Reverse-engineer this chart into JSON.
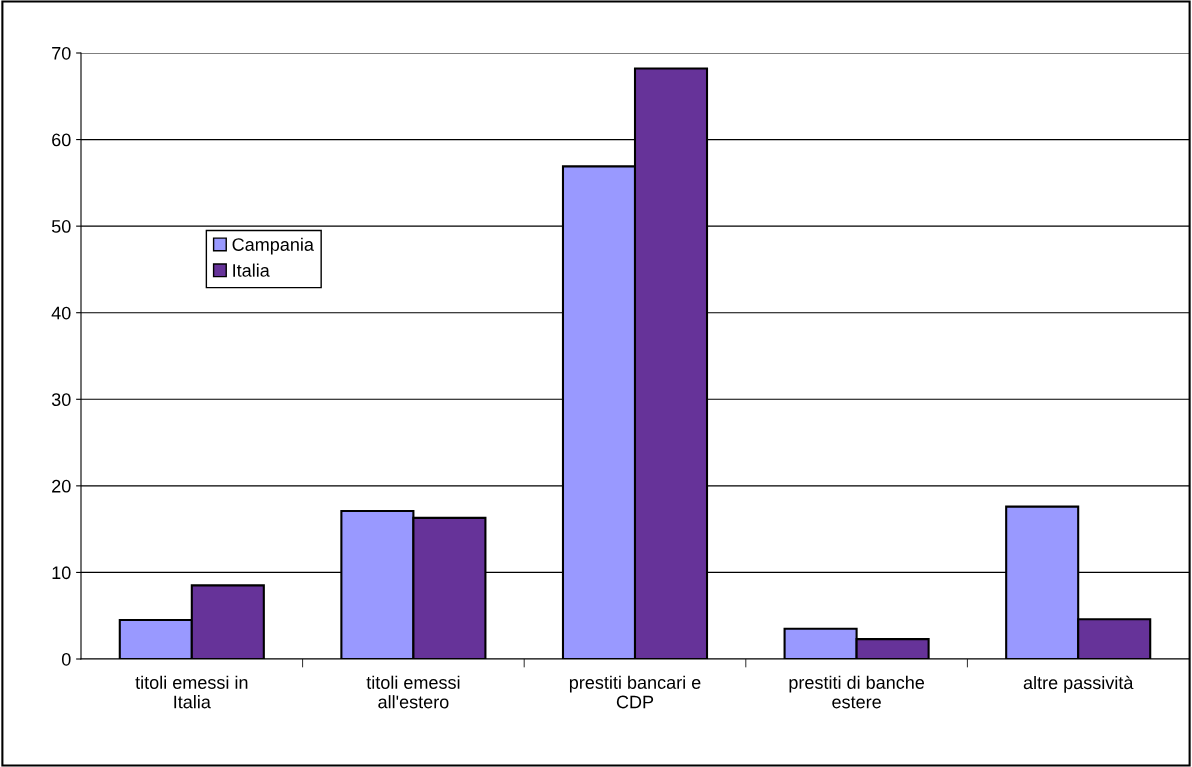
{
  "chart_data": {
    "type": "bar",
    "categories": [
      "titoli emessi in\nItalia",
      "titoli emessi\nall'estero",
      "prestiti bancari e\nCDP",
      "prestiti di banche\nestere",
      "altre passività"
    ],
    "series": [
      {
        "name": "Campania",
        "color": "#9999ff",
        "values": [
          4.5,
          17.1,
          56.9,
          3.5,
          17.6
        ]
      },
      {
        "name": "Italia",
        "color": "#663399",
        "values": [
          8.5,
          16.3,
          68.2,
          2.3,
          4.6
        ]
      }
    ],
    "ylim": [
      0,
      70
    ],
    "yticks": [
      0,
      10,
      20,
      30,
      40,
      50,
      60,
      70
    ],
    "grid": "y",
    "legend": "left"
  }
}
